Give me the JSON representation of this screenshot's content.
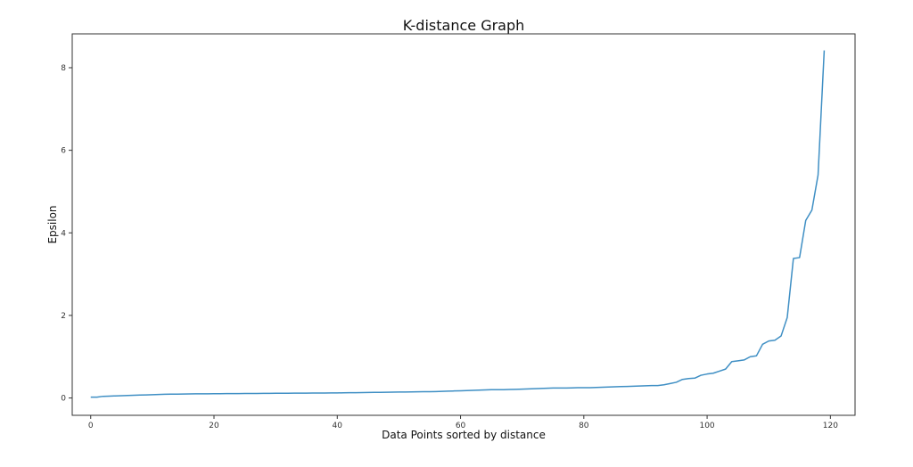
{
  "chart_data": {
    "type": "line",
    "title": "K-distance Graph",
    "xlabel": "Data Points sorted by distance",
    "ylabel": "Epsilon",
    "xlim": [
      -3,
      124
    ],
    "ylim": [
      -0.42,
      8.82
    ],
    "x_ticks": [
      0,
      20,
      40,
      60,
      80,
      100,
      120
    ],
    "y_ticks": [
      0,
      2,
      4,
      6,
      8
    ],
    "x_tick_labels": [
      "0",
      "20",
      "40",
      "60",
      "80",
      "100",
      "120"
    ],
    "y_tick_labels": [
      "0",
      "2",
      "4",
      "6",
      "8"
    ],
    "grid": false,
    "legend": "none",
    "line_color": "#3f8fc4",
    "series": [
      {
        "values": [
          0.02,
          0.02,
          0.04,
          0.045,
          0.05,
          0.055,
          0.06,
          0.065,
          0.07,
          0.075,
          0.08,
          0.085,
          0.09,
          0.092,
          0.094,
          0.096,
          0.098,
          0.1,
          0.101,
          0.102,
          0.103,
          0.104,
          0.105,
          0.106,
          0.107,
          0.108,
          0.109,
          0.11,
          0.111,
          0.112,
          0.113,
          0.114,
          0.115,
          0.116,
          0.117,
          0.118,
          0.119,
          0.12,
          0.121,
          0.122,
          0.123,
          0.125,
          0.127,
          0.129,
          0.131,
          0.133,
          0.135,
          0.137,
          0.139,
          0.141,
          0.143,
          0.145,
          0.147,
          0.149,
          0.151,
          0.153,
          0.155,
          0.16,
          0.165,
          0.17,
          0.175,
          0.18,
          0.185,
          0.19,
          0.195,
          0.2,
          0.2,
          0.2,
          0.205,
          0.21,
          0.215,
          0.22,
          0.225,
          0.23,
          0.235,
          0.24,
          0.24,
          0.24,
          0.245,
          0.25,
          0.25,
          0.25,
          0.255,
          0.26,
          0.265,
          0.27,
          0.275,
          0.28,
          0.285,
          0.29,
          0.295,
          0.3,
          0.3,
          0.32,
          0.35,
          0.38,
          0.45,
          0.47,
          0.48,
          0.55,
          0.58,
          0.6,
          0.65,
          0.7,
          0.88,
          0.9,
          0.92,
          1.0,
          1.02,
          1.3,
          1.38,
          1.4,
          1.5,
          1.95,
          3.38,
          3.4,
          4.3,
          4.55,
          5.4,
          8.42
        ]
      }
    ]
  }
}
